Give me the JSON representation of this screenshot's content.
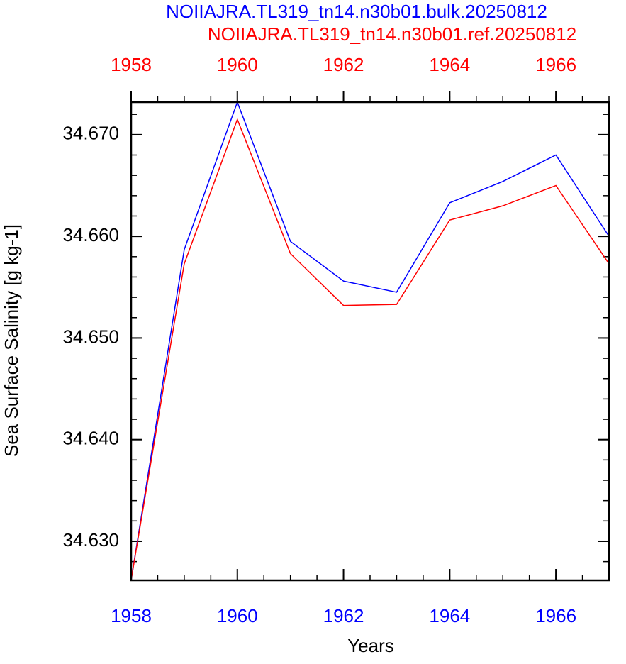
{
  "chart_data": {
    "type": "line",
    "x_label": "Years",
    "y_label": "Sea Surface Salinity [g kg-1]",
    "x": [
      1958,
      1959,
      1960,
      1961,
      1962,
      1963,
      1964,
      1965,
      1966,
      1967
    ],
    "series": [
      {
        "name": "NOIIAJRA.TL319_tn14.n30b01.bulk.20250812",
        "color": "#0000ff",
        "values": [
          34.6262,
          34.6587,
          34.6732,
          34.6595,
          34.6556,
          34.6545,
          34.6633,
          34.6654,
          34.668,
          34.66
        ]
      },
      {
        "name": "NOIIAJRA.TL319_tn14.n30b01.ref.20250812",
        "color": "#ff0000",
        "values": [
          34.6262,
          34.6573,
          34.6715,
          34.6583,
          34.6532,
          34.6533,
          34.6616,
          34.663,
          34.665,
          34.6573
        ]
      }
    ],
    "xlim": [
      1958,
      1967
    ],
    "xticks": [
      1958,
      1960,
      1962,
      1964,
      1966
    ],
    "ylim": [
      34.62616,
      34.6732
    ],
    "yticks": [
      {
        "value": 34.63,
        "label": "34.630"
      },
      {
        "value": 34.64,
        "label": "34.640"
      },
      {
        "value": 34.65,
        "label": "34.650"
      },
      {
        "value": 34.66,
        "label": "34.660"
      },
      {
        "value": 34.67,
        "label": "34.670"
      }
    ]
  }
}
